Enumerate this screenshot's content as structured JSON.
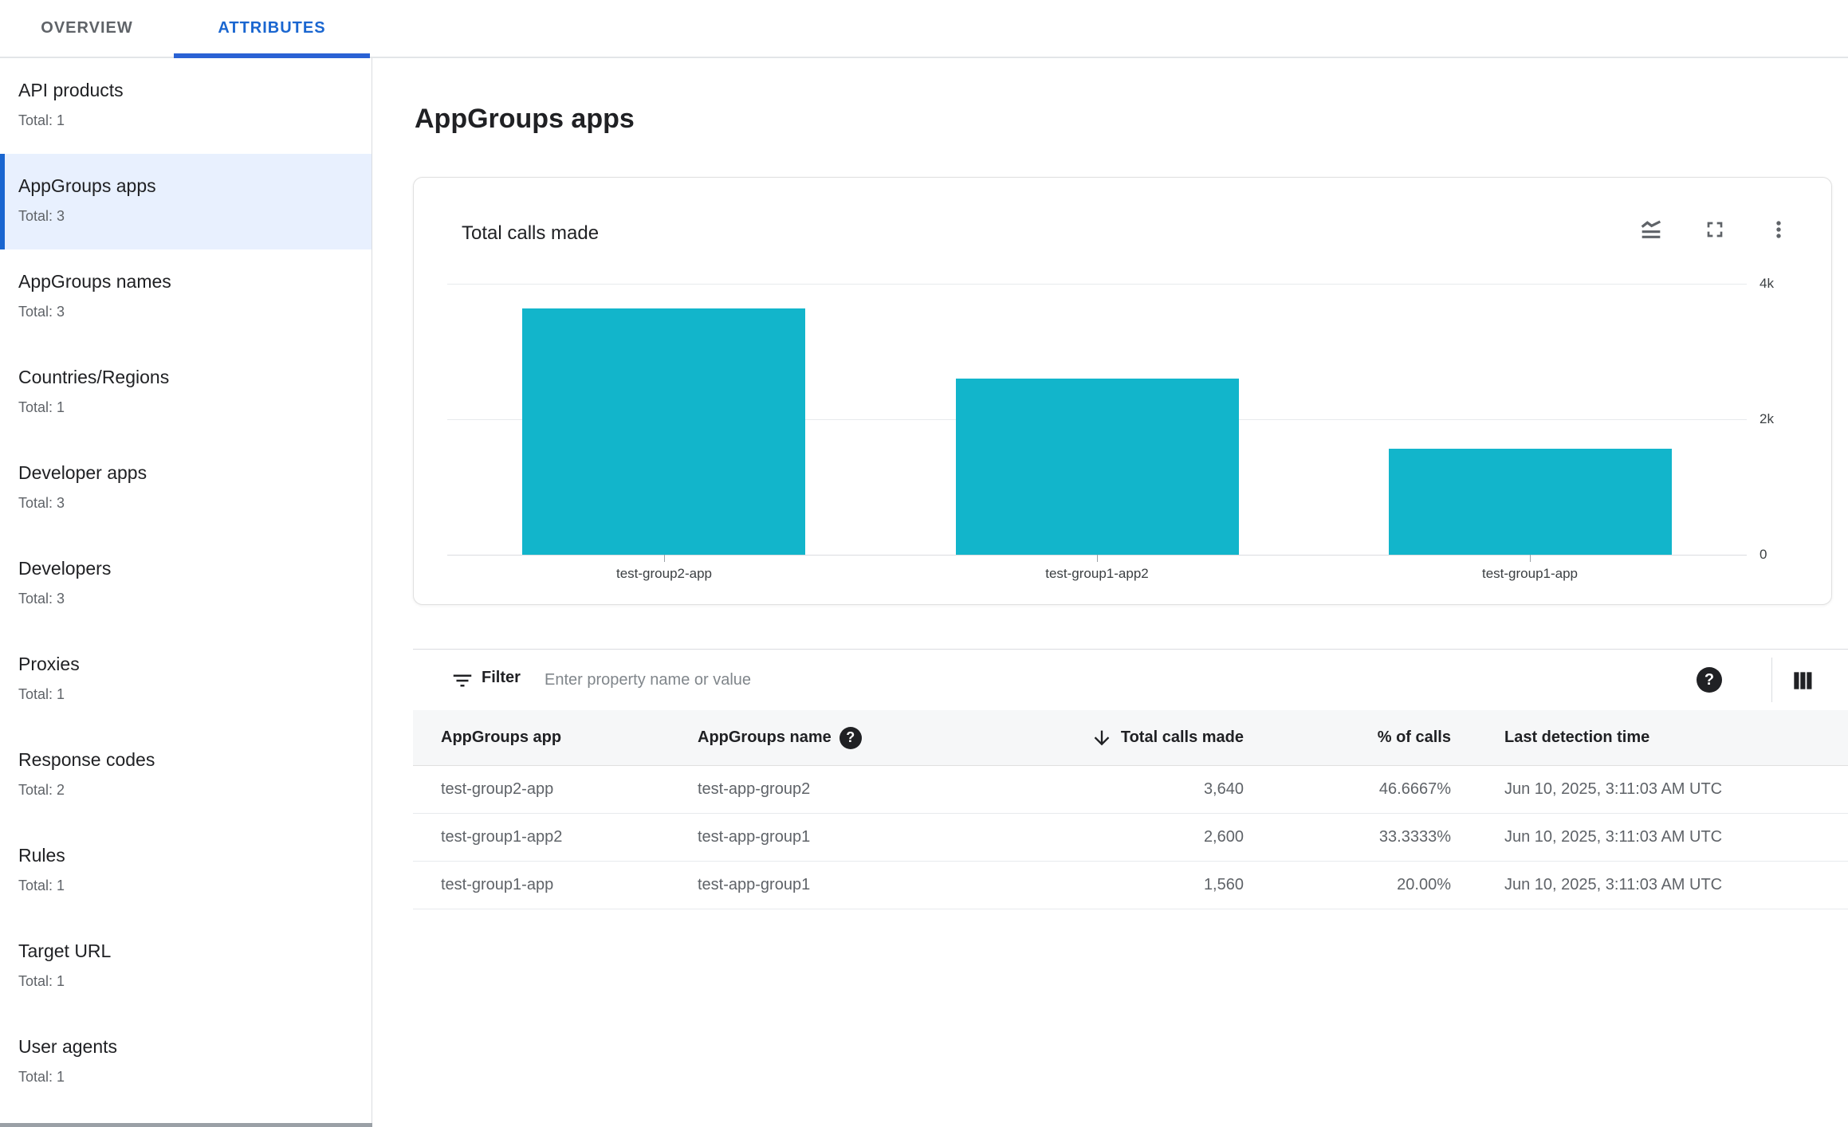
{
  "tabs": {
    "overview": "OVERVIEW",
    "attributes": "ATTRIBUTES",
    "active": "ATTRIBUTES"
  },
  "colors": {
    "accent": "#1a66d0",
    "bar": "#12b5cb",
    "selected_bg": "#e8f0fe"
  },
  "sidebar": {
    "items": [
      {
        "label": "API products",
        "total": "Total: 1",
        "selected": false
      },
      {
        "label": "AppGroups apps",
        "total": "Total: 3",
        "selected": true
      },
      {
        "label": "AppGroups names",
        "total": "Total: 3",
        "selected": false
      },
      {
        "label": "Countries/Regions",
        "total": "Total: 1",
        "selected": false
      },
      {
        "label": "Developer apps",
        "total": "Total: 3",
        "selected": false
      },
      {
        "label": "Developers",
        "total": "Total: 3",
        "selected": false
      },
      {
        "label": "Proxies",
        "total": "Total: 1",
        "selected": false
      },
      {
        "label": "Response codes",
        "total": "Total: 2",
        "selected": false
      },
      {
        "label": "Rules",
        "total": "Total: 1",
        "selected": false
      },
      {
        "label": "Target URL",
        "total": "Total: 1",
        "selected": false
      },
      {
        "label": "User agents",
        "total": "Total: 1",
        "selected": false
      }
    ]
  },
  "page": {
    "title": "AppGroups apps"
  },
  "chart_card": {
    "title": "Total calls made",
    "icons": [
      "area-chart",
      "fullscreen",
      "more-vert"
    ]
  },
  "chart_data": {
    "type": "bar",
    "title": "Total calls made",
    "categories": [
      "test-group2-app",
      "test-group1-app2",
      "test-group1-app"
    ],
    "values": [
      3640,
      2600,
      1560
    ],
    "ylim": [
      0,
      4000
    ],
    "yticks": [
      "4k",
      "2k",
      "0"
    ],
    "xlabel": "",
    "ylabel": "",
    "grid": true,
    "legend": "none",
    "bar_color": "#12b5cb"
  },
  "filter": {
    "label": "Filter",
    "placeholder": "Enter property name or value"
  },
  "table": {
    "columns": [
      {
        "label": "AppGroups app",
        "align": "left",
        "help": false,
        "sort": null
      },
      {
        "label": "AppGroups name",
        "align": "left",
        "help": true,
        "sort": null
      },
      {
        "label": "Total calls made",
        "align": "right",
        "help": false,
        "sort": "desc"
      },
      {
        "label": "% of calls",
        "align": "right",
        "help": false,
        "sort": null
      },
      {
        "label": "Last detection time",
        "align": "left",
        "help": false,
        "sort": null
      }
    ],
    "rows": [
      {
        "app": "test-group2-app",
        "name": "test-app-group2",
        "calls": "3,640",
        "pct": "46.6667%",
        "time": "Jun 10, 2025, 3:11:03 AM UTC"
      },
      {
        "app": "test-group1-app2",
        "name": "test-app-group1",
        "calls": "2,600",
        "pct": "33.3333%",
        "time": "Jun 10, 2025, 3:11:03 AM UTC"
      },
      {
        "app": "test-group1-app",
        "name": "test-app-group1",
        "calls": "1,560",
        "pct": "20.00%",
        "time": "Jun 10, 2025, 3:11:03 AM UTC"
      }
    ]
  }
}
